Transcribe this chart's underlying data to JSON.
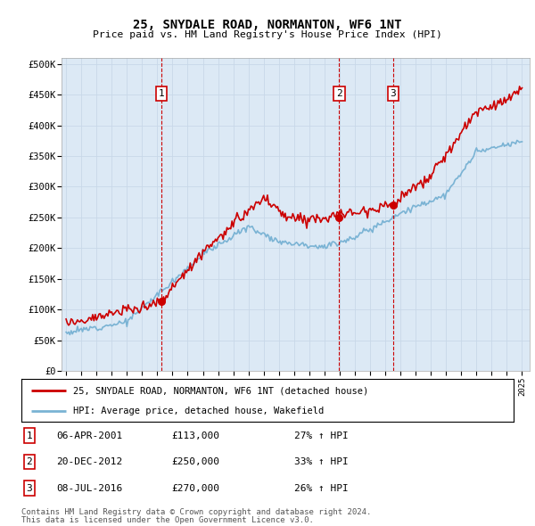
{
  "title": "25, SNYDALE ROAD, NORMANTON, WF6 1NT",
  "subtitle": "Price paid vs. HM Land Registry's House Price Index (HPI)",
  "background_color": "#dce9f5",
  "plot_bg_color": "#dce9f5",
  "ylim": [
    0,
    510000
  ],
  "yticks": [
    0,
    50000,
    100000,
    150000,
    200000,
    250000,
    300000,
    350000,
    400000,
    450000,
    500000
  ],
  "ytick_labels": [
    "£0",
    "£50K",
    "£100K",
    "£150K",
    "£200K",
    "£250K",
    "£300K",
    "£350K",
    "£400K",
    "£450K",
    "£500K"
  ],
  "sale_prices": [
    113000,
    250000,
    270000
  ],
  "sale_labels": [
    "1",
    "2",
    "3"
  ],
  "sale_hpi_pct": [
    "27% ↑ HPI",
    "33% ↑ HPI",
    "26% ↑ HPI"
  ],
  "sale_date_labels": [
    "06-APR-2001",
    "20-DEC-2012",
    "08-JUL-2016"
  ],
  "sale_price_labels": [
    "£113,000",
    "£250,000",
    "£270,000"
  ],
  "sale_year_floats": [
    2001.27,
    2012.97,
    2016.52
  ],
  "hpi_color": "#7ab3d4",
  "price_color": "#cc0000",
  "legend_label_price": "25, SNYDALE ROAD, NORMANTON, WF6 1NT (detached house)",
  "legend_label_hpi": "HPI: Average price, detached house, Wakefield",
  "footer_line1": "Contains HM Land Registry data © Crown copyright and database right 2024.",
  "footer_line2": "This data is licensed under the Open Government Licence v3.0.",
  "grid_color": "#c8d8e8",
  "dashed_line_color": "#cc0000",
  "xlim_left": 1994.7,
  "xlim_right": 2025.5
}
